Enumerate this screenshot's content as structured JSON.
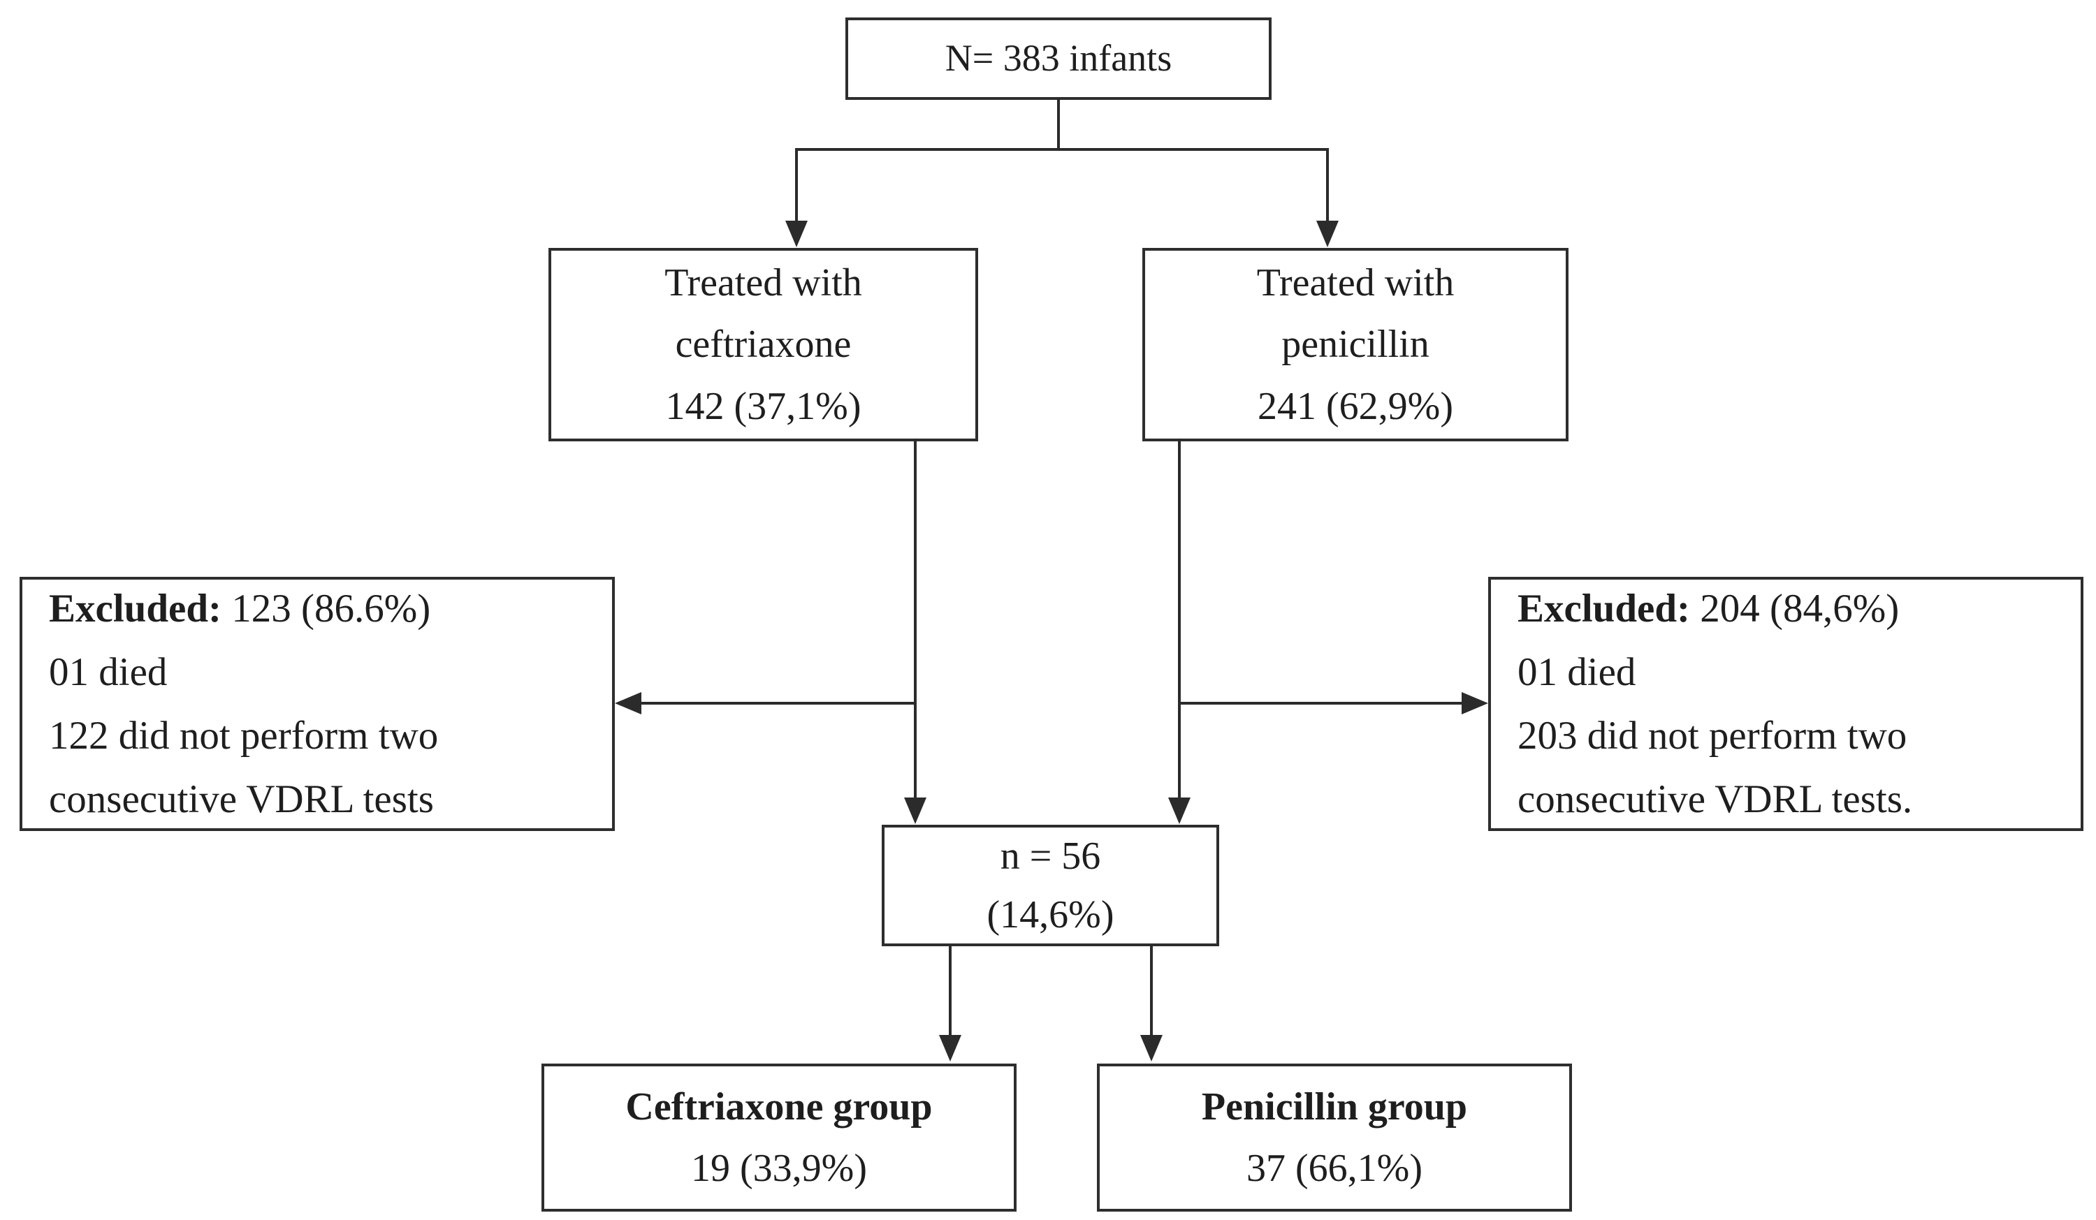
{
  "colors": {
    "ink": "#1e1e1e",
    "line": "#2b2b2b",
    "background": "#ffffff"
  },
  "boxes": {
    "total": {
      "text": "N= 383 infants"
    },
    "treated_ceftriaxone": {
      "lines": [
        "Treated with",
        "ceftriaxone",
        "142 (37,1%)"
      ]
    },
    "treated_penicillin": {
      "lines": [
        "Treated with",
        "penicillin",
        "241 (62,9%)"
      ]
    },
    "excluded_ceftriaxone": {
      "label": "Excluded:",
      "value": "123 (86.6%)",
      "lines": [
        "01 died",
        "122 did not perform two",
        "consecutive VDRL tests"
      ]
    },
    "excluded_penicillin": {
      "label": "Excluded:",
      "value": "204 (84,6%)",
      "lines": [
        "01 died",
        "203 did not perform two",
        "consecutive VDRL tests."
      ]
    },
    "analyzed": {
      "lines": [
        "n = 56",
        "(14,6%)"
      ]
    },
    "group_ceftriaxone": {
      "title": "Ceftriaxone group",
      "value": "19 (33,9%)"
    },
    "group_penicillin": {
      "title": "Penicillin group",
      "value": "37 (66,1%)"
    }
  }
}
